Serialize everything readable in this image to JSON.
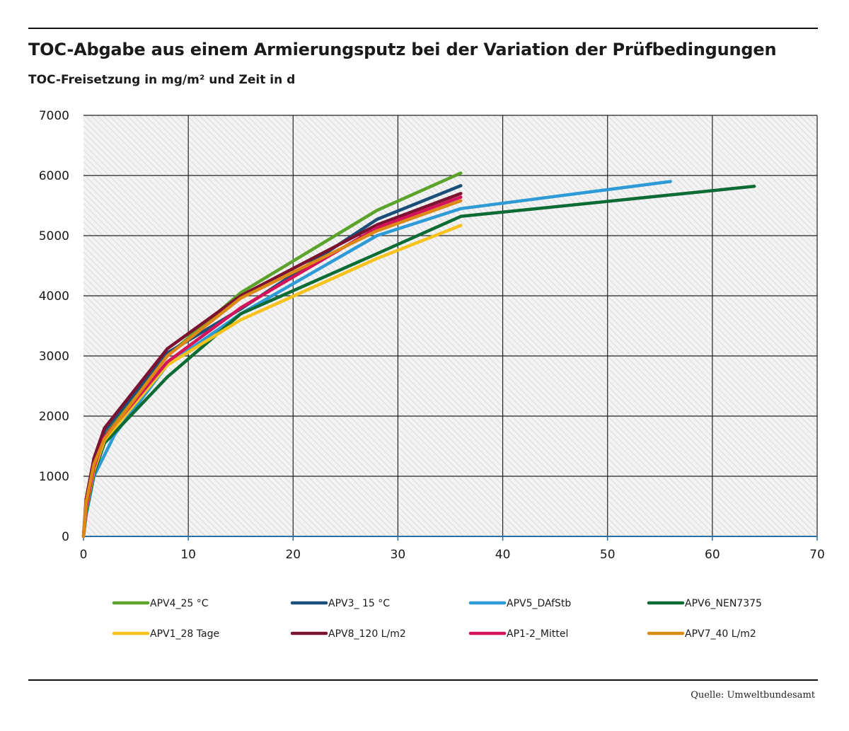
{
  "header": {
    "title": "TOC-Abgabe aus einem Armierungsputz bei der Variation der Prüfbedingungen",
    "subtitle": "TOC-Freisetzung in mg/m² und Zeit in d"
  },
  "footer": {
    "source": "Quelle: Umweltbundesamt"
  },
  "chart_data": {
    "type": "line",
    "title": "TOC-Abgabe aus einem Armierungsputz bei der Variation der Prüfbedingungen",
    "subtitle": "TOC-Freisetzung in mg/m² und Zeit in d",
    "xlabel": "",
    "ylabel": "",
    "xlim": [
      0,
      70
    ],
    "ylim": [
      0,
      7000
    ],
    "x_ticks": [
      0,
      10,
      20,
      30,
      40,
      50,
      60,
      70
    ],
    "y_ticks": [
      0,
      1000,
      2000,
      3000,
      4000,
      5000,
      6000,
      7000
    ],
    "grid": true,
    "plot_background": "hatched light grey",
    "legend_position": "bottom",
    "series": [
      {
        "name": "APV4_25 °C",
        "color": "#5ba32b",
        "x": [
          0,
          0.25,
          1,
          2,
          8,
          15,
          28,
          36
        ],
        "y": [
          0,
          500,
          1200,
          1700,
          3000,
          4050,
          5420,
          6040
        ]
      },
      {
        "name": "APV3_ 15 °C",
        "color": "#1b4f7a",
        "x": [
          0,
          0.25,
          1,
          2,
          8,
          15,
          28,
          36
        ],
        "y": [
          0,
          520,
          1250,
          1750,
          3050,
          3780,
          5270,
          5830
        ]
      },
      {
        "name": "APV5_DAfStb",
        "color": "#2e9ad6",
        "x": [
          0,
          0.25,
          1,
          3,
          8,
          15,
          28,
          36,
          56
        ],
        "y": [
          0,
          350,
          1000,
          1700,
          2850,
          3700,
          5000,
          5450,
          5900
        ]
      },
      {
        "name": "APV6_NEN7375",
        "color": "#0d6b34",
        "x": [
          0,
          0.25,
          1,
          2,
          8,
          15,
          28,
          36,
          64
        ],
        "y": [
          0,
          400,
          1050,
          1550,
          2650,
          3700,
          4700,
          5320,
          5820
        ]
      },
      {
        "name": "APV1_28 Tage",
        "color": "#f7c21b",
        "x": [
          0,
          0.25,
          1,
          2,
          8,
          15,
          28,
          36
        ],
        "y": [
          0,
          450,
          1100,
          1600,
          2850,
          3600,
          4620,
          5170
        ]
      },
      {
        "name": "APV8_120 L/m2",
        "color": "#7a1230",
        "x": [
          0,
          0.25,
          1,
          2,
          8,
          15,
          28,
          36
        ],
        "y": [
          0,
          620,
          1300,
          1800,
          3120,
          4000,
          5180,
          5700
        ]
      },
      {
        "name": "AP1-2_Mittel",
        "color": "#d4145a",
        "x": [
          0,
          0.25,
          1,
          2,
          8,
          15,
          28,
          36
        ],
        "y": [
          0,
          480,
          1150,
          1650,
          2900,
          3800,
          5130,
          5640
        ]
      },
      {
        "name": "APV7_40 L/m2",
        "color": "#dd8a14",
        "x": [
          0,
          0.25,
          1,
          2,
          8,
          15,
          28,
          36
        ],
        "y": [
          0,
          560,
          1200,
          1620,
          3000,
          3960,
          5080,
          5580
        ]
      }
    ]
  }
}
